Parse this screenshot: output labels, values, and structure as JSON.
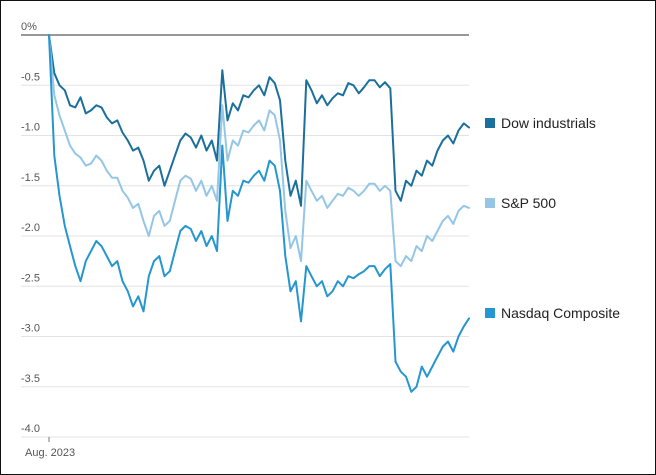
{
  "chart_data": {
    "type": "line",
    "title": "",
    "xlabel": "",
    "ylabel": "",
    "x_tick_labels": [
      "Aug. 2023"
    ],
    "y_tick_labels": [
      "0%",
      "-0.5",
      "-1.0",
      "-1.5",
      "-2.0",
      "-2.5",
      "-3.0",
      "-3.5",
      "-4.0"
    ],
    "y_tick_values": [
      0,
      -0.5,
      -1.0,
      -1.5,
      -2.0,
      -2.5,
      -3.0,
      -3.5,
      -4.0
    ],
    "ylim": [
      -4.0,
      0
    ],
    "grid": true,
    "legend_position": "right",
    "series": [
      {
        "name": "Dow industrials",
        "color": "#1b6f9c",
        "values": [
          0.0,
          -0.38,
          -0.5,
          -0.55,
          -0.7,
          -0.72,
          -0.62,
          -0.78,
          -0.75,
          -0.7,
          -0.72,
          -0.82,
          -0.88,
          -0.85,
          -0.97,
          -1.05,
          -1.15,
          -1.12,
          -1.25,
          -1.45,
          -1.35,
          -1.3,
          -1.5,
          -1.35,
          -1.2,
          -1.05,
          -0.98,
          -1.02,
          -1.12,
          -1.0,
          -1.15,
          -1.05,
          -1.25,
          -0.35,
          -0.85,
          -0.68,
          -0.75,
          -0.6,
          -0.62,
          -0.55,
          -0.5,
          -0.6,
          -0.42,
          -0.48,
          -0.65,
          -1.25,
          -1.6,
          -1.45,
          -1.7,
          -0.45,
          -0.55,
          -0.68,
          -0.6,
          -0.7,
          -0.63,
          -0.58,
          -0.6,
          -0.48,
          -0.5,
          -0.58,
          -0.52,
          -0.45,
          -0.45,
          -0.52,
          -0.47,
          -0.53,
          -1.55,
          -1.65,
          -1.45,
          -1.5,
          -1.35,
          -1.4,
          -1.25,
          -1.3,
          -1.15,
          -1.05,
          -1.0,
          -1.08,
          -0.95,
          -0.88,
          -0.92
        ]
      },
      {
        "name": "S&P 500",
        "color": "#95c6e6",
        "values": [
          0.0,
          -0.6,
          -0.8,
          -0.95,
          -1.1,
          -1.18,
          -1.22,
          -1.3,
          -1.28,
          -1.2,
          -1.25,
          -1.35,
          -1.42,
          -1.42,
          -1.55,
          -1.62,
          -1.72,
          -1.68,
          -1.85,
          -2.0,
          -1.8,
          -1.75,
          -1.9,
          -1.85,
          -1.65,
          -1.45,
          -1.4,
          -1.43,
          -1.55,
          -1.45,
          -1.6,
          -1.5,
          -1.65,
          -0.7,
          -1.25,
          -1.05,
          -1.1,
          -0.95,
          -0.97,
          -0.9,
          -0.85,
          -0.95,
          -0.75,
          -0.8,
          -1.05,
          -1.75,
          -2.12,
          -2.0,
          -2.25,
          -1.45,
          -1.55,
          -1.65,
          -1.6,
          -1.72,
          -1.65,
          -1.58,
          -1.6,
          -1.52,
          -1.55,
          -1.6,
          -1.55,
          -1.48,
          -1.48,
          -1.55,
          -1.5,
          -1.55,
          -2.25,
          -2.3,
          -2.2,
          -2.25,
          -2.1,
          -2.15,
          -2.0,
          -2.05,
          -1.95,
          -1.85,
          -1.8,
          -1.88,
          -1.75,
          -1.7,
          -1.72
        ]
      },
      {
        "name": "Nasdaq Composite",
        "color": "#2596cf",
        "values": [
          0.0,
          -1.2,
          -1.6,
          -1.9,
          -2.1,
          -2.3,
          -2.45,
          -2.25,
          -2.15,
          -2.05,
          -2.1,
          -2.2,
          -2.3,
          -2.25,
          -2.45,
          -2.55,
          -2.7,
          -2.6,
          -2.75,
          -2.4,
          -2.25,
          -2.2,
          -2.4,
          -2.35,
          -2.15,
          -1.95,
          -1.9,
          -1.93,
          -2.05,
          -1.95,
          -2.1,
          -2.0,
          -2.15,
          -1.1,
          -1.85,
          -1.55,
          -1.6,
          -1.45,
          -1.47,
          -1.4,
          -1.35,
          -1.45,
          -1.25,
          -1.3,
          -1.55,
          -2.2,
          -2.55,
          -2.45,
          -2.85,
          -2.3,
          -2.4,
          -2.5,
          -2.45,
          -2.6,
          -2.55,
          -2.45,
          -2.5,
          -2.4,
          -2.42,
          -2.38,
          -2.35,
          -2.3,
          -2.3,
          -2.4,
          -2.33,
          -2.28,
          -3.25,
          -3.35,
          -3.4,
          -3.55,
          -3.5,
          -3.3,
          -3.4,
          -3.3,
          -3.2,
          -3.1,
          -3.05,
          -3.15,
          -3.0,
          -2.9,
          -2.82
        ]
      }
    ]
  }
}
